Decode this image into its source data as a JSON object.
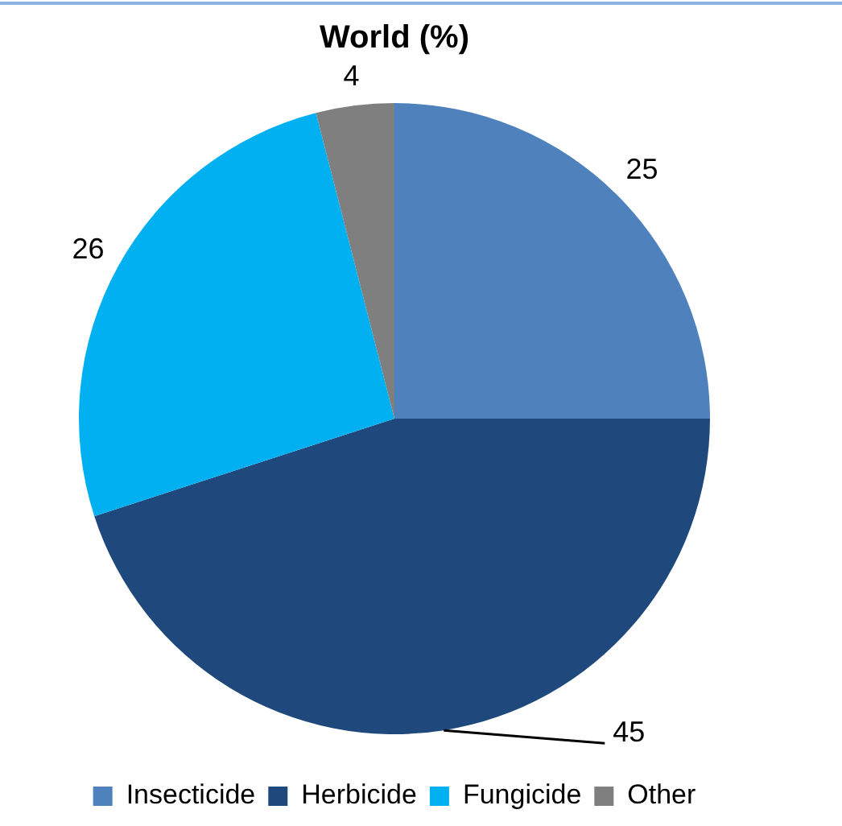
{
  "chart_data": {
    "type": "pie",
    "title": "World (%)",
    "categories": [
      "Insecticide",
      "Herbicide",
      "Fungicide",
      "Other"
    ],
    "values": [
      25,
      45,
      26,
      4
    ],
    "colors": [
      "#4f81bd",
      "#1f497d",
      "#00b0f0",
      "#7f7f7f"
    ],
    "data_labels": true,
    "legend": "bottom"
  }
}
